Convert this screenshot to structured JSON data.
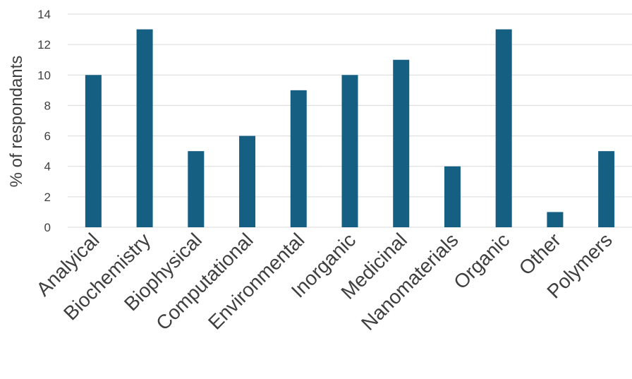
{
  "chart_data": {
    "type": "bar",
    "title": "",
    "xlabel": "",
    "ylabel": "% of respondants",
    "categories": [
      "Analyical",
      "Biochemistry",
      "Biophysical",
      "Computational",
      "Environmental",
      "Inorganic",
      "Medicinal",
      "Nanomaterials",
      "Organic",
      "Other",
      "Polymers"
    ],
    "values": [
      10,
      13,
      5,
      6,
      9,
      10,
      11,
      4,
      13,
      1,
      5
    ],
    "ylim": [
      0,
      14
    ],
    "yticks": [
      0,
      2,
      4,
      6,
      8,
      10,
      12,
      14
    ],
    "grid": true,
    "legend": "none",
    "bar_color": "#155f83"
  }
}
